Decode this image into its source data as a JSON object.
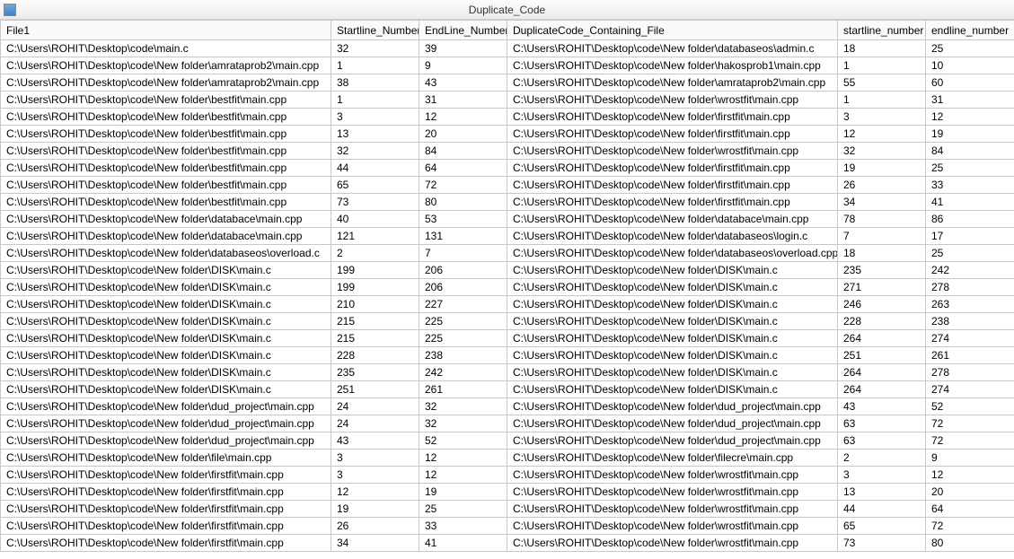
{
  "window": {
    "title": "Duplicate_Code"
  },
  "table": {
    "columns": [
      "File1",
      "Startline_Number",
      "EndLine_Number",
      "DuplicateCode_Containing_File",
      "startline_number",
      "endline_number"
    ],
    "rows": [
      [
        "C:\\Users\\ROHIT\\Desktop\\code\\main.c",
        "32",
        "39",
        "C:\\Users\\ROHIT\\Desktop\\code\\New folder\\databaseos\\admin.c",
        "18",
        "25"
      ],
      [
        "C:\\Users\\ROHIT\\Desktop\\code\\New folder\\amrataprob2\\main.cpp",
        "1",
        "9",
        "C:\\Users\\ROHIT\\Desktop\\code\\New folder\\hakosprob1\\main.cpp",
        "1",
        "10"
      ],
      [
        "C:\\Users\\ROHIT\\Desktop\\code\\New folder\\amrataprob2\\main.cpp",
        "38",
        "43",
        "C:\\Users\\ROHIT\\Desktop\\code\\New folder\\amrataprob2\\main.cpp",
        "55",
        "60"
      ],
      [
        "C:\\Users\\ROHIT\\Desktop\\code\\New folder\\bestfit\\main.cpp",
        "1",
        "31",
        "C:\\Users\\ROHIT\\Desktop\\code\\New folder\\wrostfit\\main.cpp",
        "1",
        "31"
      ],
      [
        "C:\\Users\\ROHIT\\Desktop\\code\\New folder\\bestfit\\main.cpp",
        "3",
        "12",
        "C:\\Users\\ROHIT\\Desktop\\code\\New folder\\firstfit\\main.cpp",
        "3",
        "12"
      ],
      [
        "C:\\Users\\ROHIT\\Desktop\\code\\New folder\\bestfit\\main.cpp",
        "13",
        "20",
        "C:\\Users\\ROHIT\\Desktop\\code\\New folder\\firstfit\\main.cpp",
        "12",
        "19"
      ],
      [
        "C:\\Users\\ROHIT\\Desktop\\code\\New folder\\bestfit\\main.cpp",
        "32",
        "84",
        "C:\\Users\\ROHIT\\Desktop\\code\\New folder\\wrostfit\\main.cpp",
        "32",
        "84"
      ],
      [
        "C:\\Users\\ROHIT\\Desktop\\code\\New folder\\bestfit\\main.cpp",
        "44",
        "64",
        "C:\\Users\\ROHIT\\Desktop\\code\\New folder\\firstfit\\main.cpp",
        "19",
        "25"
      ],
      [
        "C:\\Users\\ROHIT\\Desktop\\code\\New folder\\bestfit\\main.cpp",
        "65",
        "72",
        "C:\\Users\\ROHIT\\Desktop\\code\\New folder\\firstfit\\main.cpp",
        "26",
        "33"
      ],
      [
        "C:\\Users\\ROHIT\\Desktop\\code\\New folder\\bestfit\\main.cpp",
        "73",
        "80",
        "C:\\Users\\ROHIT\\Desktop\\code\\New folder\\firstfit\\main.cpp",
        "34",
        "41"
      ],
      [
        "C:\\Users\\ROHIT\\Desktop\\code\\New folder\\databace\\main.cpp",
        "40",
        "53",
        "C:\\Users\\ROHIT\\Desktop\\code\\New folder\\databace\\main.cpp",
        "78",
        "86"
      ],
      [
        "C:\\Users\\ROHIT\\Desktop\\code\\New folder\\databace\\main.cpp",
        "121",
        "131",
        "C:\\Users\\ROHIT\\Desktop\\code\\New folder\\databaseos\\login.c",
        "7",
        "17"
      ],
      [
        "C:\\Users\\ROHIT\\Desktop\\code\\New folder\\databaseos\\overload.c",
        "2",
        "7",
        "C:\\Users\\ROHIT\\Desktop\\code\\New folder\\databaseos\\overload.cpp",
        "18",
        "25"
      ],
      [
        "C:\\Users\\ROHIT\\Desktop\\code\\New folder\\DISK\\main.c",
        "199",
        "206",
        "C:\\Users\\ROHIT\\Desktop\\code\\New folder\\DISK\\main.c",
        "235",
        "242"
      ],
      [
        "C:\\Users\\ROHIT\\Desktop\\code\\New folder\\DISK\\main.c",
        "199",
        "206",
        "C:\\Users\\ROHIT\\Desktop\\code\\New folder\\DISK\\main.c",
        "271",
        "278"
      ],
      [
        "C:\\Users\\ROHIT\\Desktop\\code\\New folder\\DISK\\main.c",
        "210",
        "227",
        "C:\\Users\\ROHIT\\Desktop\\code\\New folder\\DISK\\main.c",
        "246",
        "263"
      ],
      [
        "C:\\Users\\ROHIT\\Desktop\\code\\New folder\\DISK\\main.c",
        "215",
        "225",
        "C:\\Users\\ROHIT\\Desktop\\code\\New folder\\DISK\\main.c",
        "228",
        "238"
      ],
      [
        "C:\\Users\\ROHIT\\Desktop\\code\\New folder\\DISK\\main.c",
        "215",
        "225",
        "C:\\Users\\ROHIT\\Desktop\\code\\New folder\\DISK\\main.c",
        "264",
        "274"
      ],
      [
        "C:\\Users\\ROHIT\\Desktop\\code\\New folder\\DISK\\main.c",
        "228",
        "238",
        "C:\\Users\\ROHIT\\Desktop\\code\\New folder\\DISK\\main.c",
        "251",
        "261"
      ],
      [
        "C:\\Users\\ROHIT\\Desktop\\code\\New folder\\DISK\\main.c",
        "235",
        "242",
        "C:\\Users\\ROHIT\\Desktop\\code\\New folder\\DISK\\main.c",
        "264",
        "278"
      ],
      [
        "C:\\Users\\ROHIT\\Desktop\\code\\New folder\\DISK\\main.c",
        "251",
        "261",
        "C:\\Users\\ROHIT\\Desktop\\code\\New folder\\DISK\\main.c",
        "264",
        "274"
      ],
      [
        "C:\\Users\\ROHIT\\Desktop\\code\\New folder\\dud_project\\main.cpp",
        "24",
        "32",
        "C:\\Users\\ROHIT\\Desktop\\code\\New folder\\dud_project\\main.cpp",
        "43",
        "52"
      ],
      [
        "C:\\Users\\ROHIT\\Desktop\\code\\New folder\\dud_project\\main.cpp",
        "24",
        "32",
        "C:\\Users\\ROHIT\\Desktop\\code\\New folder\\dud_project\\main.cpp",
        "63",
        "72"
      ],
      [
        "C:\\Users\\ROHIT\\Desktop\\code\\New folder\\dud_project\\main.cpp",
        "43",
        "52",
        "C:\\Users\\ROHIT\\Desktop\\code\\New folder\\dud_project\\main.cpp",
        "63",
        "72"
      ],
      [
        "C:\\Users\\ROHIT\\Desktop\\code\\New folder\\file\\main.cpp",
        "3",
        "12",
        "C:\\Users\\ROHIT\\Desktop\\code\\New folder\\filecre\\main.cpp",
        "2",
        "9"
      ],
      [
        "C:\\Users\\ROHIT\\Desktop\\code\\New folder\\firstfit\\main.cpp",
        "3",
        "12",
        "C:\\Users\\ROHIT\\Desktop\\code\\New folder\\wrostfit\\main.cpp",
        "3",
        "12"
      ],
      [
        "C:\\Users\\ROHIT\\Desktop\\code\\New folder\\firstfit\\main.cpp",
        "12",
        "19",
        "C:\\Users\\ROHIT\\Desktop\\code\\New folder\\wrostfit\\main.cpp",
        "13",
        "20"
      ],
      [
        "C:\\Users\\ROHIT\\Desktop\\code\\New folder\\firstfit\\main.cpp",
        "19",
        "25",
        "C:\\Users\\ROHIT\\Desktop\\code\\New folder\\wrostfit\\main.cpp",
        "44",
        "64"
      ],
      [
        "C:\\Users\\ROHIT\\Desktop\\code\\New folder\\firstfit\\main.cpp",
        "26",
        "33",
        "C:\\Users\\ROHIT\\Desktop\\code\\New folder\\wrostfit\\main.cpp",
        "65",
        "72"
      ],
      [
        "C:\\Users\\ROHIT\\Desktop\\code\\New folder\\firstfit\\main.cpp",
        "34",
        "41",
        "C:\\Users\\ROHIT\\Desktop\\code\\New folder\\wrostfit\\main.cpp",
        "73",
        "80"
      ]
    ]
  }
}
